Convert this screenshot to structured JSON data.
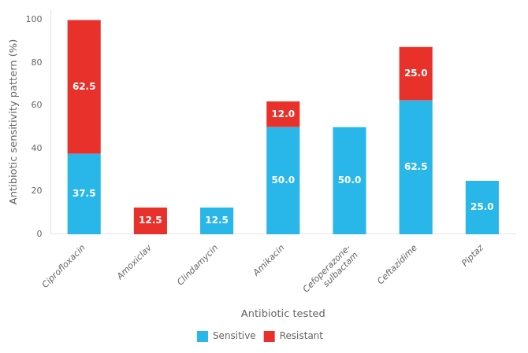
{
  "chart_data": {
    "type": "bar",
    "stacked": true,
    "data_labels": true,
    "grid": false,
    "legend": "bottom",
    "xlabel": "Antibiotic tested",
    "ylabel": "Antibiotic sensitivity pattern (%)",
    "categories": [
      "Ciprofloxacin",
      "Amoxiclav",
      "Clindamycin",
      "Amikacin",
      "Cefoperazone-\nsulbactam",
      "Ceftazidime",
      "Piptaz"
    ],
    "series": [
      {
        "name": "Sensitive",
        "color": "#29B6E8",
        "values": [
          37.5,
          0,
          12.5,
          50.0,
          50.0,
          62.5,
          25.0
        ],
        "value_labels": [
          "37.5",
          null,
          "12.5",
          "50.0",
          "50.0",
          "62.5",
          "25.0"
        ]
      },
      {
        "name": "Resistant",
        "color": "#E8312A",
        "values": [
          62.5,
          12.5,
          0,
          12.0,
          0,
          25.0,
          0
        ],
        "value_labels": [
          "62.5",
          "12.5",
          null,
          "12.0",
          null,
          "25.0",
          null
        ]
      }
    ],
    "ylim": [
      0,
      105
    ],
    "yticks": [
      0,
      20,
      40,
      60,
      80,
      100
    ]
  }
}
